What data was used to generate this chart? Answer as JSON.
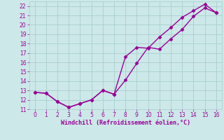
{
  "xlabel": "Windchill (Refroidissement éolien,°C)",
  "line1_x": [
    0,
    1,
    2,
    3,
    4,
    5,
    6,
    7,
    8,
    9,
    10,
    11,
    12,
    13,
    14,
    15,
    16
  ],
  "line1_y": [
    12.8,
    12.7,
    11.8,
    11.2,
    11.6,
    12.0,
    13.0,
    12.6,
    14.1,
    15.9,
    17.6,
    17.4,
    18.5,
    19.5,
    20.9,
    21.8,
    21.3
  ],
  "line2_x": [
    0,
    1,
    2,
    3,
    4,
    5,
    6,
    7,
    8,
    9,
    10,
    11,
    12,
    13,
    14,
    15,
    16
  ],
  "line2_y": [
    12.8,
    12.7,
    11.8,
    11.2,
    11.6,
    12.0,
    13.0,
    12.6,
    16.6,
    17.6,
    17.5,
    18.7,
    19.7,
    20.8,
    21.5,
    22.2,
    21.3
  ],
  "line_color": "#990099",
  "bg_color": "#cce8e8",
  "grid_color": "#aacece",
  "ylim": [
    11,
    22.5
  ],
  "xlim": [
    -0.5,
    16.5
  ],
  "yticks": [
    11,
    12,
    13,
    14,
    15,
    16,
    17,
    18,
    19,
    20,
    21,
    22
  ],
  "xticks": [
    0,
    1,
    2,
    3,
    4,
    5,
    6,
    7,
    8,
    9,
    10,
    11,
    12,
    13,
    14,
    15,
    16
  ],
  "marker": "D",
  "marker_size": 2.5,
  "linewidth": 1.0
}
